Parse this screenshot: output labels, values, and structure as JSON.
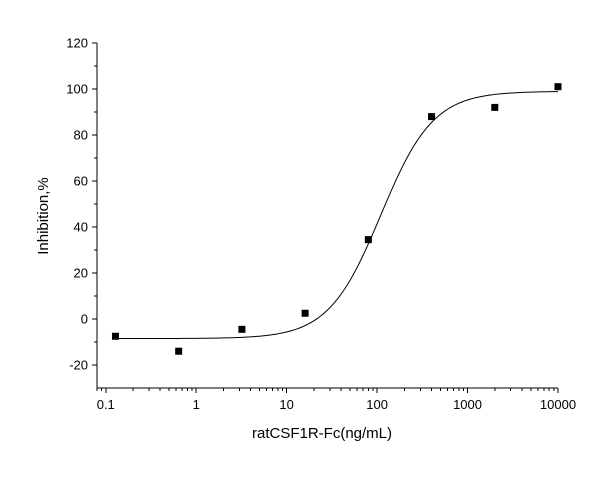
{
  "chart_data": {
    "type": "scatter",
    "title": "",
    "xlabel": "ratCSF1R-Fc(ng/mL)",
    "ylabel": "Inhibition,%",
    "x_scale": "log",
    "xlim": [
      0.08,
      10000
    ],
    "ylim": [
      -30,
      120
    ],
    "x_ticks": [
      0.1,
      1,
      10,
      100,
      1000,
      10000
    ],
    "x_tick_labels": [
      "0.1",
      "1",
      "10",
      "100",
      "1000",
      "10000"
    ],
    "y_ticks": [
      -20,
      0,
      20,
      40,
      60,
      80,
      100,
      120
    ],
    "y_tick_labels": [
      "-20",
      "0",
      "20",
      "40",
      "60",
      "80",
      "100",
      "120"
    ],
    "grid": false,
    "legend": "none",
    "marker_color": "#000000",
    "line_color": "#000000",
    "series": [
      {
        "points": [
          {
            "x": 0.128,
            "y": -7.5
          },
          {
            "x": 0.64,
            "y": -14
          },
          {
            "x": 3.2,
            "y": -4.5
          },
          {
            "x": 16,
            "y": 2.5
          },
          {
            "x": 80,
            "y": 34.5
          },
          {
            "x": 400,
            "y": 88
          },
          {
            "x": 2000,
            "y": 92
          },
          {
            "x": 10000,
            "y": 101
          }
        ]
      }
    ],
    "fit_curve": {
      "model": "four-parameter logistic",
      "bottom": -8.5,
      "top": 99,
      "ec50": 110,
      "hill": 1.5
    }
  }
}
